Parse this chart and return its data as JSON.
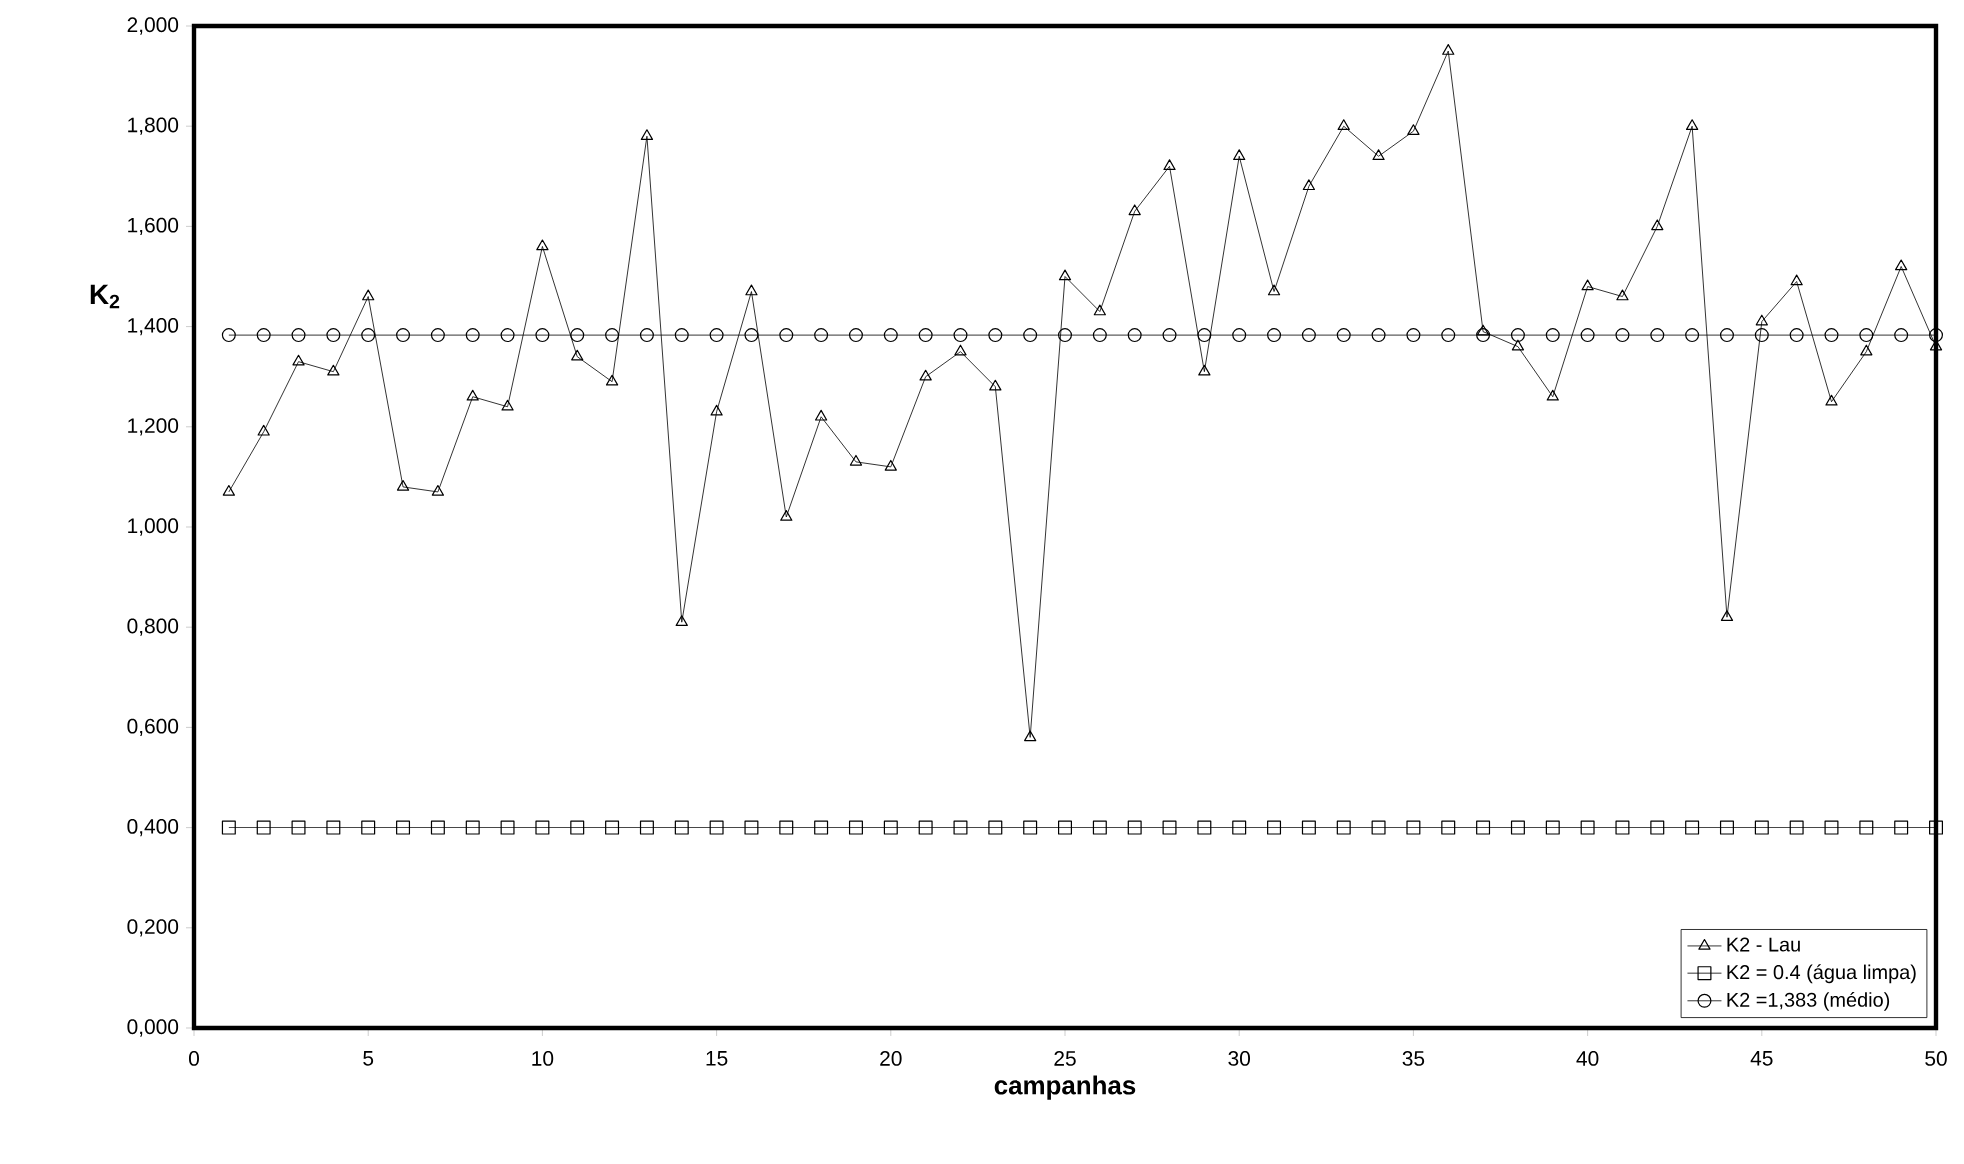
{
  "chart_data": {
    "type": "line",
    "xlabel": "campanhas",
    "ylabel": "K$_{2}$",
    "x": [
      1,
      2,
      3,
      4,
      5,
      6,
      7,
      8,
      9,
      10,
      11,
      12,
      13,
      14,
      15,
      16,
      17,
      18,
      19,
      20,
      21,
      22,
      23,
      24,
      25,
      26,
      27,
      28,
      29,
      30,
      31,
      32,
      33,
      34,
      35,
      36,
      37,
      38,
      39,
      40,
      41,
      42,
      43,
      44,
      45,
      46,
      47,
      48,
      49,
      50
    ],
    "series": [
      {
        "name": "K2 - Lau",
        "color": "#000000",
        "marker": "triangle",
        "values": [
          1.07,
          1.19,
          1.33,
          1.31,
          1.46,
          1.08,
          1.07,
          1.26,
          1.24,
          1.56,
          1.34,
          1.29,
          1.78,
          0.81,
          1.23,
          1.47,
          1.02,
          1.22,
          1.13,
          1.12,
          1.3,
          1.35,
          1.28,
          0.58,
          1.5,
          1.43,
          1.63,
          1.72,
          1.31,
          1.74,
          1.47,
          1.68,
          1.8,
          1.74,
          1.79,
          1.95,
          1.39,
          1.36,
          1.26,
          1.48,
          1.46,
          1.6,
          1.8,
          0.82,
          1.41,
          1.49,
          1.25,
          1.35,
          1.52,
          1.36
        ]
      },
      {
        "name": "K2 = 0.4 (água limpa)",
        "color": "#000000",
        "marker": "square",
        "values": [
          0.4,
          0.4,
          0.4,
          0.4,
          0.4,
          0.4,
          0.4,
          0.4,
          0.4,
          0.4,
          0.4,
          0.4,
          0.4,
          0.4,
          0.4,
          0.4,
          0.4,
          0.4,
          0.4,
          0.4,
          0.4,
          0.4,
          0.4,
          0.4,
          0.4,
          0.4,
          0.4,
          0.4,
          0.4,
          0.4,
          0.4,
          0.4,
          0.4,
          0.4,
          0.4,
          0.4,
          0.4,
          0.4,
          0.4,
          0.4,
          0.4,
          0.4,
          0.4,
          0.4,
          0.4,
          0.4,
          0.4,
          0.4,
          0.4,
          0.4
        ]
      },
      {
        "name": "K2 =1,383 (médio)",
        "color": "#000000",
        "marker": "circle",
        "values": [
          1.383,
          1.383,
          1.383,
          1.383,
          1.383,
          1.383,
          1.383,
          1.383,
          1.383,
          1.383,
          1.383,
          1.383,
          1.383,
          1.383,
          1.383,
          1.383,
          1.383,
          1.383,
          1.383,
          1.383,
          1.383,
          1.383,
          1.383,
          1.383,
          1.383,
          1.383,
          1.383,
          1.383,
          1.383,
          1.383,
          1.383,
          1.383,
          1.383,
          1.383,
          1.383,
          1.383,
          1.383,
          1.383,
          1.383,
          1.383,
          1.383,
          1.383,
          1.383,
          1.383,
          1.383,
          1.383,
          1.383,
          1.383,
          1.383,
          1.383
        ]
      }
    ],
    "xlim": [
      0,
      50
    ],
    "xticks": [
      0,
      5,
      10,
      15,
      20,
      25,
      30,
      35,
      40,
      45,
      50
    ],
    "ylim": [
      0,
      2
    ],
    "yticks": [
      {
        "value": 0,
        "label": "0,000"
      },
      {
        "value": 0.2,
        "label": "0,200"
      },
      {
        "value": 0.4,
        "label": "0,400"
      },
      {
        "value": 0.6,
        "label": "0,600"
      },
      {
        "value": 0.8,
        "label": "0,800"
      },
      {
        "value": 1.0,
        "label": "1,000"
      },
      {
        "value": 1.2,
        "label": "1,200"
      },
      {
        "value": 1.4,
        "label": "1,400"
      },
      {
        "value": 1.6,
        "label": "1,600"
      },
      {
        "value": 1.8,
        "label": "1,800"
      },
      {
        "value": 2.0,
        "label": "2,000"
      }
    ],
    "grid": false,
    "legend": "bottom right",
    "line_style": "solid"
  }
}
